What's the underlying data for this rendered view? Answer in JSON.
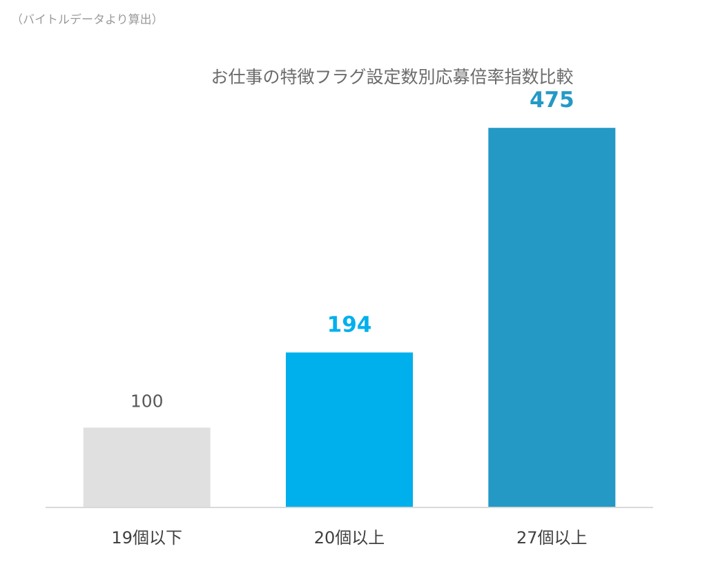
{
  "source_note": "（バイトルデータより算出）",
  "colors": {
    "bar_1": "#e0e0e0",
    "bar_2": "#00b0ec",
    "bar_3": "#2499c6",
    "label_1": "#595959",
    "label_2": "#00b0ec",
    "label_3": "#2499c6",
    "title": "#6b6b6b",
    "tick": "#404040",
    "axis": "#d9d9d9"
  },
  "chart_data": {
    "type": "bar",
    "title": "お仕事の特徴フラグ設定数別応募倍率指数比較",
    "categories": [
      "19個以下",
      "20個以上",
      "27個以上"
    ],
    "values": [
      100,
      194,
      475
    ],
    "value_labels": [
      "100",
      "194",
      "475"
    ],
    "xlabel": "",
    "ylabel": "",
    "ylim": [
      0,
      540
    ],
    "grid": false,
    "legend": "none"
  }
}
